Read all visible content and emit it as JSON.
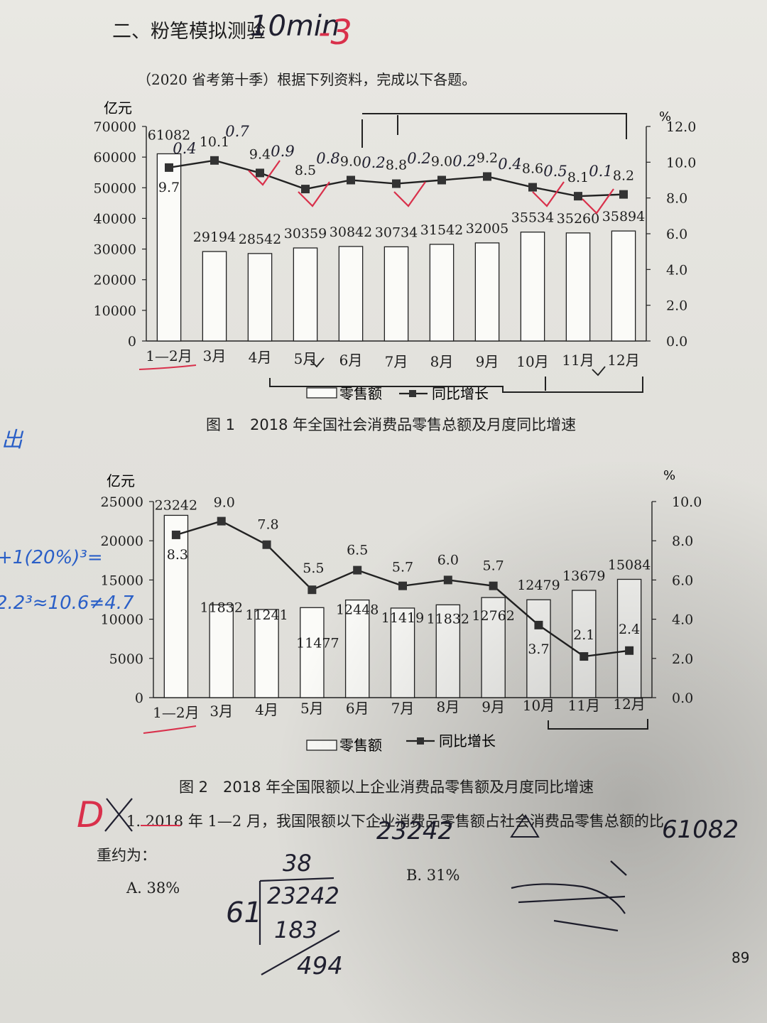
{
  "section_title": "二、粉笔模拟测验",
  "intro": "（2020 省考第十季）根据下列资料，完成以下各题。",
  "page_number": "89",
  "chart_data": [
    {
      "type": "bar",
      "title": "图 1　2018 年全国社会消费品零售总额及月度同比增速",
      "left_unit": "亿元",
      "right_unit": "%",
      "categories": [
        "1—2月",
        "3月",
        "4月",
        "5月",
        "6月",
        "7月",
        "8月",
        "9月",
        "10月",
        "11月",
        "12月"
      ],
      "left_ticks": [
        "0",
        "10000",
        "20000",
        "30000",
        "40000",
        "50000",
        "60000",
        "70000"
      ],
      "right_ticks": [
        "0.0",
        "2.0",
        "4.0",
        "6.0",
        "8.0",
        "10.0",
        "12.0"
      ],
      "ylim": [
        0,
        70000
      ],
      "y2lim": [
        0,
        12
      ],
      "legend": [
        "零售额",
        "同比增长"
      ],
      "legend_position": "bottom",
      "series": [
        {
          "name": "零售额",
          "type": "bar",
          "values": [
            61082,
            29194,
            28542,
            30359,
            30842,
            30734,
            31542,
            32005,
            35534,
            35260,
            35894
          ]
        },
        {
          "name": "同比增长",
          "type": "line",
          "values": [
            9.7,
            10.1,
            9.4,
            8.5,
            9.0,
            8.8,
            9.0,
            9.2,
            8.6,
            8.1,
            8.2
          ]
        }
      ]
    },
    {
      "type": "bar",
      "title": "图 2　2018 年全国限额以上企业消费品零售额及月度同比增速",
      "left_unit": "亿元",
      "right_unit": "%",
      "categories": [
        "1—2月",
        "3月",
        "4月",
        "5月",
        "6月",
        "7月",
        "8月",
        "9月",
        "10月",
        "11月",
        "12月"
      ],
      "left_ticks": [
        "0",
        "5000",
        "10000",
        "15000",
        "20000",
        "25000"
      ],
      "right_ticks": [
        "0.0",
        "2.0",
        "4.0",
        "6.0",
        "8.0",
        "10.0"
      ],
      "ylim": [
        0,
        25000
      ],
      "y2lim": [
        0,
        10
      ],
      "legend": [
        "零售额",
        "同比增长"
      ],
      "legend_position": "bottom",
      "series": [
        {
          "name": "零售额",
          "type": "bar",
          "values": [
            23242,
            11832,
            11241,
            11477,
            12448,
            11419,
            11832,
            12762,
            12479,
            13679,
            15084
          ]
        },
        {
          "name": "同比增长",
          "type": "line",
          "values": [
            8.3,
            9.0,
            7.8,
            5.5,
            6.5,
            5.7,
            6.0,
            5.7,
            3.7,
            2.1,
            2.4
          ]
        }
      ]
    }
  ],
  "question": {
    "line1": "1. 2018 年 1—2 月，我国限额以下企业消费品零售额占社会消费品零售总额的比",
    "line2": "重约为：",
    "option_a": "A. 38%",
    "option_b": "B. 31%"
  },
  "handwriting": {
    "title_note": "10min",
    "score_note": "-3",
    "answer_mark": "D",
    "chart1_diffs": [
      "0.4",
      "0.7",
      "0.9",
      "0.8",
      "0.2",
      "0.2",
      "0.2",
      "0.4",
      "0.5",
      "0.1"
    ],
    "q_note_1": "23242",
    "q_note_2": "61082",
    "calc_quotient": "38",
    "calc_divisor": "61",
    "calc_dividend": "23242",
    "calc_product": "183",
    "calc_remainder": "494",
    "margin_note_1": "+1(20%)³=",
    "margin_note_2": "2.2³≈10.6≠4.7",
    "margin_note_3": "出"
  },
  "colors": {
    "ink": "#1e1e1e",
    "red_pen": "#d9304b",
    "blue_pen": "#2a5fc7",
    "paper": "#e4e3de"
  }
}
